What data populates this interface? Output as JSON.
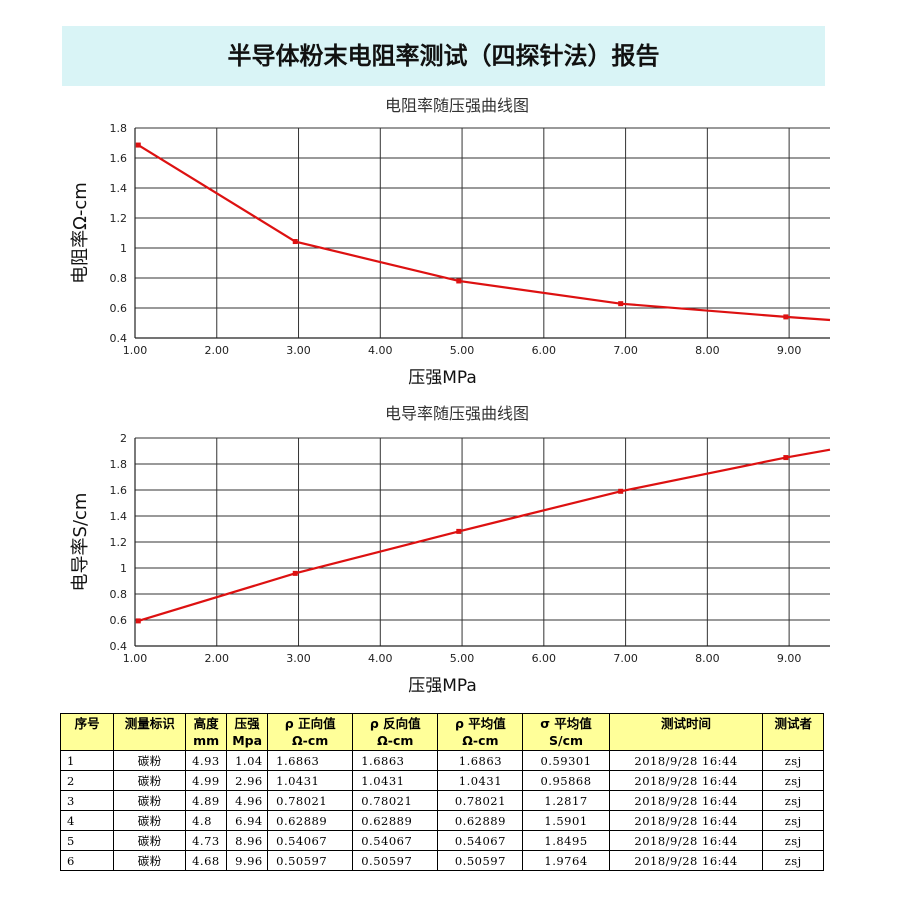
{
  "report": {
    "title": "半导体粉末电阻率测试（四探针法）报告"
  },
  "colors": {
    "banner_bg": "#d9f4f6",
    "series_line": "#dd1111",
    "table_header_bg": "#ffff99"
  },
  "chart_data": [
    {
      "type": "line",
      "title": "电阻率随压强曲线图",
      "xlabel": "压强MPa",
      "ylabel": "电阻率Ω-cm",
      "xlim": [
        1.0,
        9.5
      ],
      "ylim": [
        0.4,
        1.8
      ],
      "xticks": [
        "1.00",
        "2.00",
        "3.00",
        "4.00",
        "5.00",
        "6.00",
        "7.00",
        "8.00",
        "9.00"
      ],
      "yticks": [
        "0.4",
        "0.6",
        "0.8",
        "1",
        "1.2",
        "1.4",
        "1.6",
        "1.8"
      ],
      "grid": true,
      "series": [
        {
          "x": [
            1.04,
            2.96,
            4.96,
            6.94,
            8.96
          ],
          "y": [
            1.6863,
            1.0431,
            0.78021,
            0.62889,
            0.54067
          ],
          "line_end": [
            9.5,
            0.52
          ]
        }
      ]
    },
    {
      "type": "line",
      "title": "电导率随压强曲线图",
      "xlabel": "压强MPa",
      "ylabel": "电导率S/cm",
      "xlim": [
        1.0,
        9.5
      ],
      "ylim": [
        0.4,
        2.0
      ],
      "xticks": [
        "1.00",
        "2.00",
        "3.00",
        "4.00",
        "5.00",
        "6.00",
        "7.00",
        "8.00",
        "9.00"
      ],
      "yticks": [
        "0.4",
        "0.6",
        "0.8",
        "1",
        "1.2",
        "1.4",
        "1.6",
        "1.8",
        "2"
      ],
      "grid": true,
      "series": [
        {
          "x": [
            1.04,
            2.96,
            4.96,
            6.94,
            8.96
          ],
          "y": [
            0.59301,
            0.95868,
            1.2817,
            1.5901,
            1.8495
          ],
          "line_end": [
            9.5,
            1.91
          ]
        }
      ]
    }
  ],
  "table": {
    "headers": [
      [
        "序号"
      ],
      [
        "测量标识"
      ],
      [
        "高度",
        "mm"
      ],
      [
        "压强",
        "Mpa"
      ],
      [
        "ρ 正向值",
        "Ω-cm"
      ],
      [
        "ρ 反向值",
        "Ω-cm"
      ],
      [
        "ρ 平均值",
        "Ω-cm"
      ],
      [
        "σ 平均值",
        "S/cm"
      ],
      [
        "测试时间"
      ],
      [
        "测试者"
      ]
    ],
    "rows": [
      [
        "1",
        "碳粉",
        "4.93",
        "1.04",
        "1.6863",
        "1.6863",
        "1.6863",
        "0.59301",
        "2018/9/28 16:44",
        "zsj"
      ],
      [
        "2",
        "碳粉",
        "4.99",
        "2.96",
        "1.0431",
        "1.0431",
        "1.0431",
        "0.95868",
        "2018/9/28 16:44",
        "zsj"
      ],
      [
        "3",
        "碳粉",
        "4.89",
        "4.96",
        "0.78021",
        "0.78021",
        "0.78021",
        "1.2817",
        "2018/9/28 16:44",
        "zsj"
      ],
      [
        "4",
        "碳粉",
        "4.8",
        "6.94",
        "0.62889",
        "0.62889",
        "0.62889",
        "1.5901",
        "2018/9/28 16:44",
        "zsj"
      ],
      [
        "5",
        "碳粉",
        "4.73",
        "8.96",
        "0.54067",
        "0.54067",
        "0.54067",
        "1.8495",
        "2018/9/28 16:44",
        "zsj"
      ],
      [
        "6",
        "碳粉",
        "4.68",
        "9.96",
        "0.50597",
        "0.50597",
        "0.50597",
        "1.9764",
        "2018/9/28 16:44",
        "zsj"
      ]
    ]
  }
}
